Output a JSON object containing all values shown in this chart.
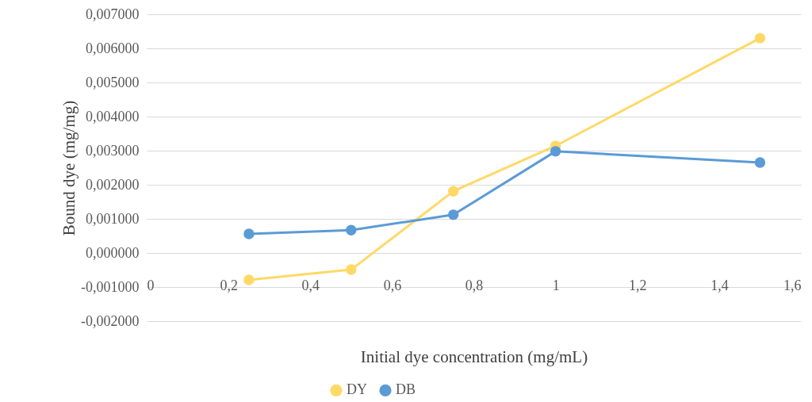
{
  "chart_data": {
    "type": "line",
    "xlabel": "Initial dye concentration (mg/mL)",
    "ylabel": "Bound dye (mg/mg)",
    "x": [
      0.25,
      0.5,
      0.75,
      1,
      1.5
    ],
    "series": [
      {
        "name": "DY",
        "color": "#ffd966",
        "values": [
          -0.00079,
          -0.00049,
          0.00181,
          0.00314,
          0.0063
        ]
      },
      {
        "name": "DB",
        "color": "#5b9bd5",
        "values": [
          0.00056,
          0.00067,
          0.00112,
          0.00298,
          0.00265
        ]
      }
    ],
    "xlim": [
      0,
      1.6
    ],
    "xticks": [
      0,
      {
        "value": 0.2,
        "label": "0,2"
      },
      {
        "value": 0.4,
        "label": "0,4"
      },
      {
        "value": 0.6,
        "label": "0,6"
      },
      {
        "value": 0.8,
        "label": "0,8"
      },
      1,
      {
        "value": 1.2,
        "label": "1,2"
      },
      {
        "value": 1.4,
        "label": "1,4"
      },
      {
        "value": 1.6,
        "label": "1,6"
      }
    ],
    "ylim": [
      -0.002,
      0.007
    ],
    "yticks": [
      {
        "value": -0.002,
        "label": "-0,002000"
      },
      {
        "value": -0.001,
        "label": "-0,001000"
      },
      {
        "value": 0,
        "label": "0,000000"
      },
      {
        "value": 0.001,
        "label": "0,001000"
      },
      {
        "value": 0.002,
        "label": "0,002000"
      },
      {
        "value": 0.003,
        "label": "0,003000"
      },
      {
        "value": 0.004,
        "label": "0,004000"
      },
      {
        "value": 0.005,
        "label": "0,005000"
      },
      {
        "value": 0.006,
        "label": "0,006000"
      },
      {
        "value": 0.007,
        "label": "0,007000"
      }
    ],
    "grid": "y",
    "legend": "bottom",
    "marker": "circle",
    "line_style": "solid"
  }
}
